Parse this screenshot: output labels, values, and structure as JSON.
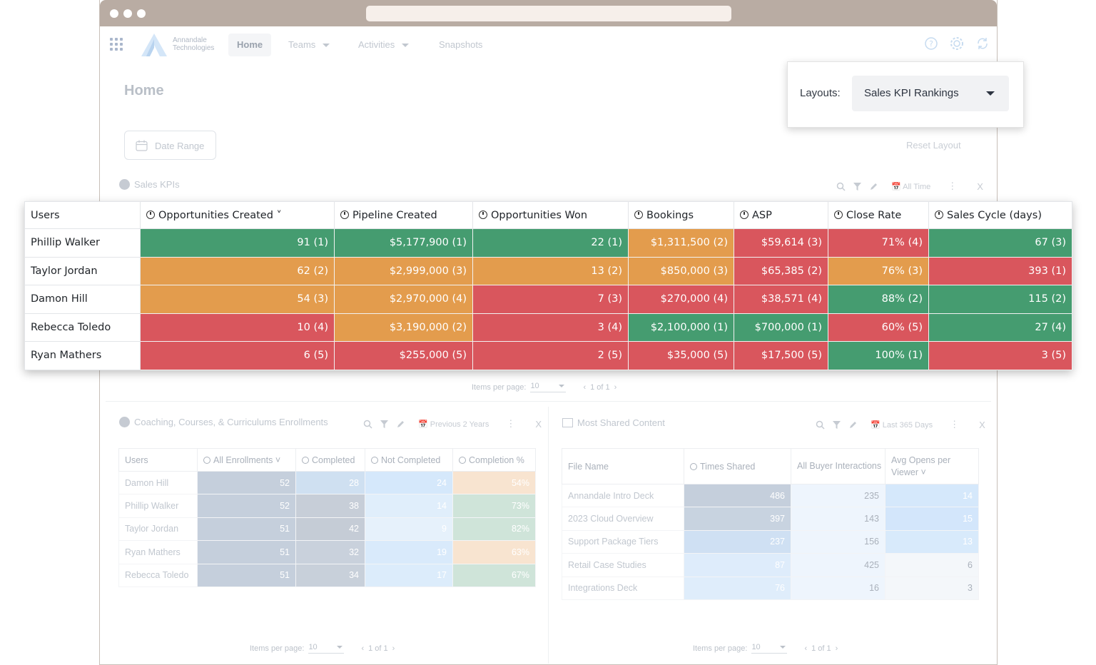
{
  "nav": {
    "logo_line1": "Annandale",
    "logo_line2": "Technologies",
    "items": [
      {
        "label": "Home",
        "active": true
      },
      {
        "label": "Teams",
        "dropdown": true
      },
      {
        "label": "Activities",
        "dropdown": true
      },
      {
        "label": "Snapshots"
      }
    ],
    "icons": [
      "help-icon",
      "gear-icon",
      "refresh-icon"
    ]
  },
  "page": {
    "title": "Home",
    "date_range_label": "Date Range",
    "reset_layout": "Reset Layout"
  },
  "layouts": {
    "label": "Layouts:",
    "selected": "Sales KPI Rankings"
  },
  "sales_kpis": {
    "title": "Sales KPIs",
    "period": "All Time",
    "close": "X",
    "columns": [
      "Users",
      "Opportunities Created",
      "Pipeline Created",
      "Opportunities Won",
      "Bookings",
      "ASP",
      "Close Rate",
      "Sales Cycle (days)"
    ],
    "rows": [
      {
        "user": "Phillip Walker",
        "cells": [
          [
            "91 (1)",
            "g"
          ],
          [
            "$5,177,900 (1)",
            "g"
          ],
          [
            "22 (1)",
            "g"
          ],
          [
            "$1,311,500 (2)",
            "o"
          ],
          [
            "$59,614 (3)",
            "r"
          ],
          [
            "71% (4)",
            "r"
          ],
          [
            "67 (3)",
            "g"
          ]
        ]
      },
      {
        "user": "Taylor Jordan",
        "cells": [
          [
            "62 (2)",
            "o"
          ],
          [
            "$2,999,000 (3)",
            "o"
          ],
          [
            "13 (2)",
            "o"
          ],
          [
            "$850,000 (3)",
            "o"
          ],
          [
            "$65,385 (2)",
            "r"
          ],
          [
            "76% (3)",
            "o"
          ],
          [
            "393 (1)",
            "r"
          ]
        ]
      },
      {
        "user": "Damon Hill",
        "cells": [
          [
            "54 (3)",
            "o"
          ],
          [
            "$2,970,000 (4)",
            "o"
          ],
          [
            "7 (3)",
            "r"
          ],
          [
            "$270,000 (4)",
            "r"
          ],
          [
            "$38,571 (4)",
            "r"
          ],
          [
            "88% (2)",
            "g"
          ],
          [
            "115 (2)",
            "g"
          ]
        ]
      },
      {
        "user": "Rebecca Toledo",
        "cells": [
          [
            "10 (4)",
            "r"
          ],
          [
            "$3,190,000 (2)",
            "o"
          ],
          [
            "3 (4)",
            "r"
          ],
          [
            "$2,100,000 (1)",
            "g"
          ],
          [
            "$700,000 (1)",
            "g"
          ],
          [
            "60% (5)",
            "r"
          ],
          [
            "27 (4)",
            "g"
          ]
        ]
      },
      {
        "user": "Ryan Mathers",
        "cells": [
          [
            "6 (5)",
            "r"
          ],
          [
            "$255,000 (5)",
            "r"
          ],
          [
            "2 (5)",
            "r"
          ],
          [
            "$35,000 (5)",
            "r"
          ],
          [
            "$17,500 (5)",
            "r"
          ],
          [
            "100% (1)",
            "g"
          ],
          [
            "3 (5)",
            "r"
          ]
        ]
      }
    ],
    "pager": {
      "label": "Items per page:",
      "per_page": "10",
      "range": "1 of 1"
    }
  },
  "coaching": {
    "title": "Coaching, Courses, & Curriculums Enrollments",
    "period": "Previous 2 Years",
    "close": "X",
    "columns": [
      "Users",
      "All Enrollments",
      "Completed",
      "Not Completed",
      "Completion %"
    ],
    "rows": [
      {
        "user": "Damon Hill",
        "cells": [
          [
            "52",
            "#c5cfdc"
          ],
          [
            "28",
            "#cfe0f1"
          ],
          [
            "24",
            "#d5e8fb"
          ],
          [
            "54%",
            "#f8e4d0"
          ]
        ]
      },
      {
        "user": "Phillip Walker",
        "cells": [
          [
            "52",
            "#c5cfdc"
          ],
          [
            "38",
            "#c7ced8"
          ],
          [
            "14",
            "#e0eefb"
          ],
          [
            "73%",
            "#cfe4d9"
          ]
        ]
      },
      {
        "user": "Taylor Jordan",
        "cells": [
          [
            "51",
            "#c5cfdc"
          ],
          [
            "42",
            "#c5ccd6"
          ],
          [
            "9",
            "#e6f1fb"
          ],
          [
            "82%",
            "#cfe4d9"
          ]
        ]
      },
      {
        "user": "Ryan Mathers",
        "cells": [
          [
            "51",
            "#c5cfdc"
          ],
          [
            "32",
            "#c9d1dc"
          ],
          [
            "19",
            "#d9eafb"
          ],
          [
            "63%",
            "#f8e4d0"
          ]
        ]
      },
      {
        "user": "Rebecca Toledo",
        "cells": [
          [
            "51",
            "#c5cfdc"
          ],
          [
            "34",
            "#c8d0da"
          ],
          [
            "17",
            "#dcecfb"
          ],
          [
            "67%",
            "#cfe4d9"
          ]
        ]
      }
    ],
    "pager": {
      "label": "Items per page:",
      "per_page": "10",
      "range": "1 of 1"
    }
  },
  "shared": {
    "title": "Most Shared Content",
    "period": "Last 365 Days",
    "close": "X",
    "columns": [
      "File Name",
      "Times Shared",
      "All Buyer Interactions",
      "Avg Opens per Viewer"
    ],
    "rows": [
      {
        "file": "Annandale Intro Deck",
        "cells": [
          [
            "486",
            "#c5cfdc",
            "#ffffff"
          ],
          [
            "235",
            "#eef5fd",
            "#aab1bb"
          ],
          [
            "14",
            "#d5e8fb",
            "#ffffff"
          ]
        ]
      },
      {
        "file": "2023 Cloud Overview",
        "cells": [
          [
            "397",
            "#c8d3e0",
            "#ffffff"
          ],
          [
            "143",
            "#eef5fd",
            "#aab1bb"
          ],
          [
            "15",
            "#d3e6fb",
            "#ffffff"
          ]
        ]
      },
      {
        "file": "Support Package Tiers",
        "cells": [
          [
            "237",
            "#cfe0f3",
            "#ffffff"
          ],
          [
            "156",
            "#eef5fd",
            "#aab1bb"
          ],
          [
            "13",
            "#d8eafb",
            "#ffffff"
          ]
        ]
      },
      {
        "file": "Retail Case Studies",
        "cells": [
          [
            "87",
            "#deecfb",
            "#ffffff"
          ],
          [
            "425",
            "#eef5fd",
            "#aab1bb"
          ],
          [
            "6",
            "#f4f7fa",
            "#aab1bb"
          ]
        ]
      },
      {
        "file": "Integrations Deck",
        "cells": [
          [
            "76",
            "#dfedfb",
            "#ffffff"
          ],
          [
            "16",
            "#eef5fd",
            "#aab1bb"
          ],
          [
            "3",
            "#f4f7fa",
            "#aab1bb"
          ]
        ]
      }
    ],
    "pager": {
      "label": "Items per page:",
      "per_page": "10",
      "range": "1 of 1"
    }
  }
}
